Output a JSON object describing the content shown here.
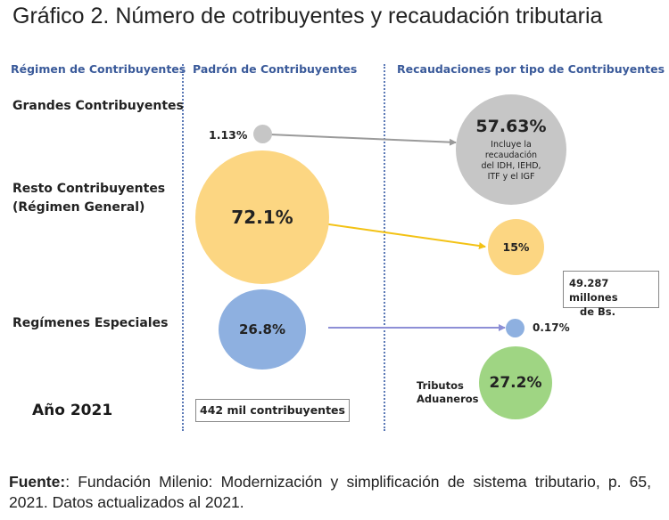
{
  "title": "Gráfico 2. Número de cotribuyentes y recaudación tributaria",
  "columns": {
    "regimen": "Régimen de Contribuyentes",
    "padron": "Padrón de Contribuyentes",
    "recaudaciones": "Recaudaciones por tipo de Contribuyentes"
  },
  "rows": {
    "grandes": "Grandes Contribuyentes",
    "resto_line1": "Resto Contribuyentes",
    "resto_line2": "(Régimen General)",
    "especiales": "Regímenes Especiales"
  },
  "year_label": "Año 2021",
  "padron_box": "442 mil contribuyentes",
  "recaudacion_box_line1": "49.287 millones",
  "recaudacion_box_line2": "de Bs.",
  "padron_values": {
    "grandes": "1.13%",
    "resto": "72.1%",
    "especiales": "26.8%"
  },
  "recaudacion_values": {
    "grandes": "57.63%",
    "grandes_note": [
      "Incluye la",
      "recaudación",
      "del IDH, IEHD,",
      "ITF y el IGF"
    ],
    "resto": "15%",
    "especiales": "0.17%",
    "aduaneros": "27.2%",
    "aduaneros_label_line1": "Tributos",
    "aduaneros_label_line2": "Aduaneros"
  },
  "colors": {
    "header_blue": "#3a5a9a",
    "separator": "#5b79b6",
    "grey_circle": "#c6c6c6",
    "yellow_circle": "#fcd682",
    "blue_circle": "#8eb0e0",
    "green_circle": "#9fd583",
    "grey_arrow": "#9a9a9a",
    "yellow_arrow": "#f3c215",
    "blue_arrow": "#8d8fd6"
  },
  "footer": {
    "source_label": "Fuente:",
    "source_text": ": Fundación Milenio: Modernización y simplificación de sistema tributario, p. 65, 2021. Datos actualizados al 2021."
  }
}
